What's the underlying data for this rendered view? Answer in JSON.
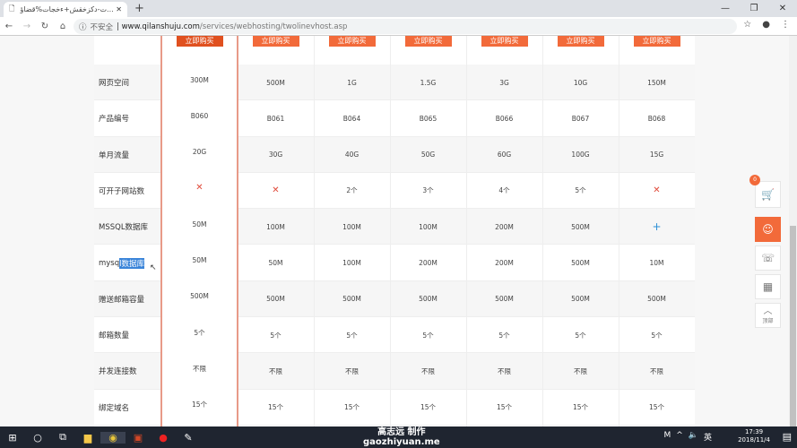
{
  "browser": {
    "tab_title": "ت-دكزخقش+ءخجات%قضاؤ...",
    "url_host": "www.qilanshuju.com",
    "url_path": "/services/webhosting/twolinevhost.asp",
    "security": "不安全"
  },
  "table": {
    "buy_label": "立即购买",
    "rows": [
      {
        "label": "网页空间",
        "values": [
          "300M",
          "500M",
          "1G",
          "1.5G",
          "3G",
          "10G",
          "150M"
        ]
      },
      {
        "label": "产品编号",
        "values": [
          "B060",
          "B061",
          "B064",
          "B065",
          "B066",
          "B067",
          "B068"
        ]
      },
      {
        "label": "单月流量",
        "values": [
          "20G",
          "30G",
          "40G",
          "50G",
          "60G",
          "100G",
          "15G"
        ]
      },
      {
        "label": "可开子网站数",
        "values": [
          "✕",
          "✕",
          "2个",
          "3个",
          "4个",
          "5个",
          "✕"
        ]
      },
      {
        "label": "MSSQL数据库",
        "values": [
          "50M",
          "100M",
          "100M",
          "100M",
          "200M",
          "500M",
          "+"
        ]
      },
      {
        "label": "mysql数据库",
        "values": [
          "50M",
          "50M",
          "100M",
          "200M",
          "200M",
          "500M",
          "10M"
        ]
      },
      {
        "label": "赠送邮箱容量",
        "values": [
          "500M",
          "500M",
          "500M",
          "500M",
          "500M",
          "500M",
          "500M"
        ]
      },
      {
        "label": "邮箱数量",
        "values": [
          "5个",
          "5个",
          "5个",
          "5个",
          "5个",
          "5个",
          "5个"
        ]
      },
      {
        "label": "并发连接数",
        "values": [
          "不限",
          "不限",
          "不限",
          "不限",
          "不限",
          "不限",
          "不限"
        ]
      },
      {
        "label": "绑定域名",
        "values": [
          "15个",
          "15个",
          "15个",
          "15个",
          "15个",
          "15个",
          "15个"
        ]
      }
    ]
  },
  "mysql_label": {
    "plain": "mysq",
    "selected": "l数据库"
  },
  "sidebar": {
    "cart_count": "0",
    "top_label": "顶部"
  },
  "taskbar": {
    "watermark_line1": "高志远  制作",
    "watermark_line2": "gaozhiyuan.me",
    "time": "17:39",
    "date": "2018/11/4",
    "ime": "英"
  },
  "colors": {
    "accent": "#f26a3a",
    "highlight_border": "#e89a88"
  }
}
